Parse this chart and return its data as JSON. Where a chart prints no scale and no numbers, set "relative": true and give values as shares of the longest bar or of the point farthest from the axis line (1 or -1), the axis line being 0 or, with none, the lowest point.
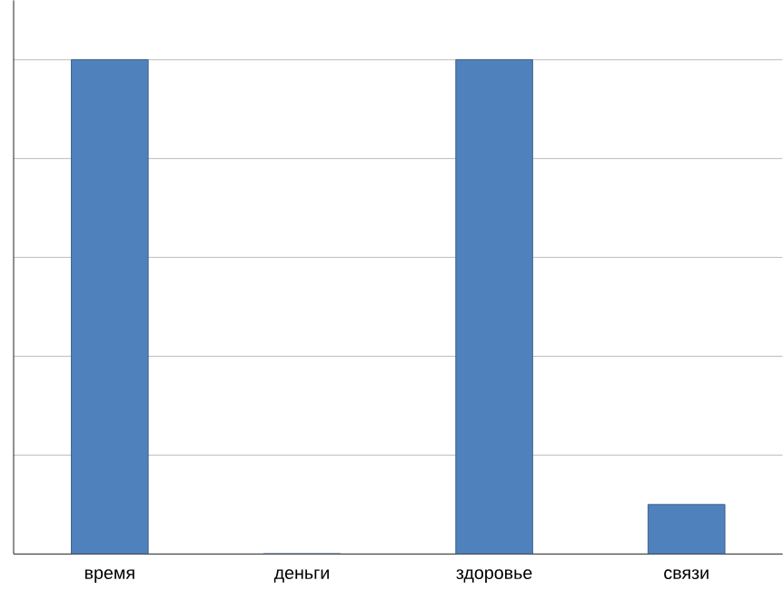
{
  "chart_data": {
    "type": "bar",
    "relative": true,
    "grid": "y",
    "categories": [
      "время",
      "деньги",
      "здоровье",
      "связи"
    ],
    "values": [
      1,
      0,
      1,
      0.1
    ],
    "color": "#4f81bd"
  }
}
